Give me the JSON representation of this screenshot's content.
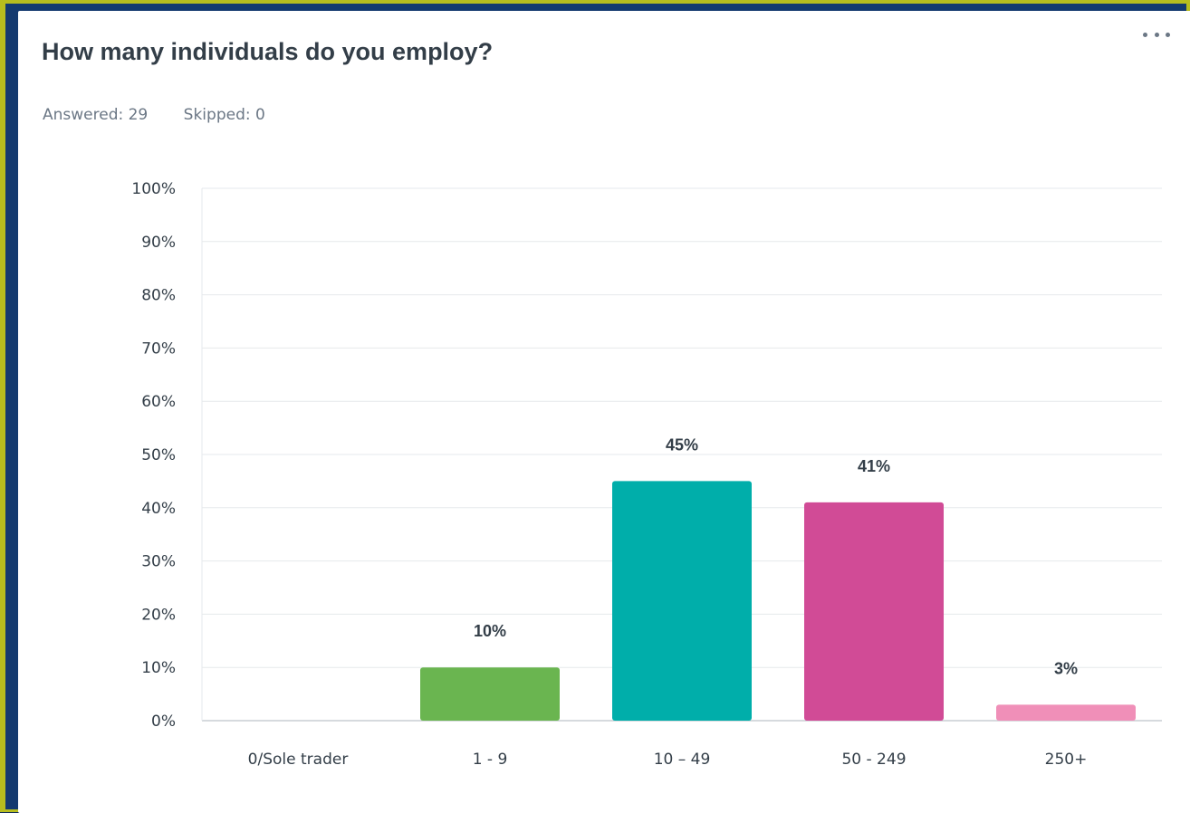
{
  "question": {
    "title": "How many individuals do you employ?",
    "answered_label": "Answered: 29",
    "skipped_label": "Skipped: 0"
  },
  "menu": {
    "more_icon": "more-horizontal-icon"
  },
  "colors": {
    "frame": "#b7bd1e",
    "grid": "#e6e9ec",
    "axis": "#c9ced3",
    "text": "#333e48"
  },
  "chart_data": {
    "type": "bar",
    "categories": [
      "0/Sole trader",
      "1 - 9",
      "10 – 49",
      "50 - 249",
      "250+"
    ],
    "values": [
      0,
      10,
      45,
      41,
      3
    ],
    "data_labels": [
      "",
      "10%",
      "45%",
      "41%",
      "3%"
    ],
    "colors": [
      "#cccccc",
      "#6ab550",
      "#00aeaa",
      "#d14b96",
      "#f08fb8"
    ],
    "ylim": [
      0,
      100
    ],
    "yticks": [
      "0%",
      "10%",
      "20%",
      "30%",
      "40%",
      "50%",
      "60%",
      "70%",
      "80%",
      "90%",
      "100%"
    ],
    "grid": true,
    "title": "",
    "xlabel": "",
    "ylabel": ""
  }
}
